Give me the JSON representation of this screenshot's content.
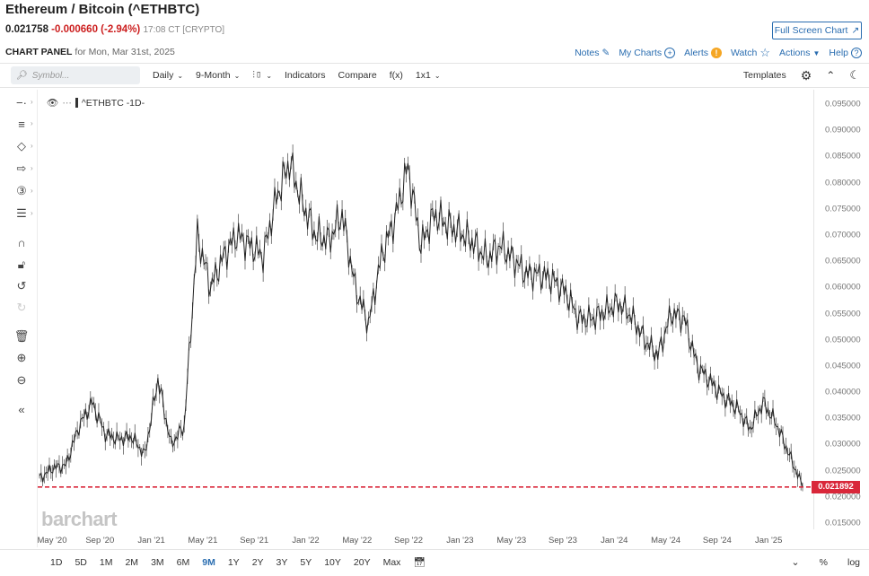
{
  "header": {
    "title": "Ethereum / Bitcoin (^ETHBTC)",
    "last_price": "0.021758",
    "change": "-0.000660 (-2.94%)",
    "time": "17:08 CT [CRYPTO]",
    "fullscreen_label": "Full Screen Chart"
  },
  "panel": {
    "label": "CHART PANEL",
    "date": "for Mon, Mar 31st, 2025"
  },
  "toplinks": {
    "notes": "Notes",
    "mycharts": "My Charts",
    "alerts": "Alerts",
    "alerts_badge": "!",
    "watch": "Watch",
    "actions": "Actions",
    "help": "Help"
  },
  "toolbar": {
    "search_placeholder": "Symbol...",
    "interval": "Daily",
    "period": "9-Month",
    "indicators": "Indicators",
    "compare": "Compare",
    "fx": "f(x)",
    "layout": "1x1",
    "templates": "Templates"
  },
  "legend": {
    "symbol": "^ETHBTC -1D-"
  },
  "current_price_label": "0.021892",
  "watermark": "barchart",
  "bottombar": {
    "ranges": [
      "1D",
      "5D",
      "1M",
      "2M",
      "3M",
      "6M",
      "9M",
      "1Y",
      "2Y",
      "3Y",
      "5Y",
      "10Y",
      "20Y",
      "Max"
    ],
    "active_range": "9M",
    "percent": "%",
    "log": "log"
  },
  "colors": {
    "accent": "#2a6db0",
    "down": "#cc1f1f",
    "price_line": "#d9273a"
  },
  "chart_data": {
    "type": "line",
    "title": "Ethereum / Bitcoin (^ETHBTC)",
    "xlabel": "",
    "ylabel": "",
    "ylim": [
      0.015,
      0.095
    ],
    "y_ticks": [
      "0.095000",
      "0.090000",
      "0.085000",
      "0.080000",
      "0.075000",
      "0.070000",
      "0.065000",
      "0.060000",
      "0.055000",
      "0.050000",
      "0.045000",
      "0.040000",
      "0.035000",
      "0.030000",
      "0.025000",
      "0.020000",
      "0.015000"
    ],
    "x_tick_labels": [
      "May '20",
      "Sep '20",
      "Jan '21",
      "May '21",
      "Sep '21",
      "Jan '22",
      "May '22",
      "Sep '22",
      "Jan '23",
      "May '23",
      "Sep '23",
      "Jan '24",
      "May '24",
      "Sep '24",
      "Jan '25"
    ],
    "x": [
      "2020-05",
      "2020-06",
      "2020-07",
      "2020-08",
      "2020-09",
      "2020-10",
      "2020-11",
      "2020-12",
      "2021-01",
      "2021-02",
      "2021-03",
      "2021-04",
      "2021-05",
      "2021-06",
      "2021-07",
      "2021-08",
      "2021-09",
      "2021-10",
      "2021-11",
      "2021-12",
      "2022-01",
      "2022-02",
      "2022-03",
      "2022-04",
      "2022-05",
      "2022-06",
      "2022-07",
      "2022-08",
      "2022-09",
      "2022-10",
      "2022-11",
      "2022-12",
      "2023-01",
      "2023-02",
      "2023-03",
      "2023-04",
      "2023-05",
      "2023-06",
      "2023-07",
      "2023-08",
      "2023-09",
      "2023-10",
      "2023-11",
      "2023-12",
      "2024-01",
      "2024-02",
      "2024-03",
      "2024-04",
      "2024-05",
      "2024-06",
      "2024-07",
      "2024-08",
      "2024-09",
      "2024-10",
      "2024-11",
      "2024-12",
      "2025-01",
      "2025-02",
      "2025-03"
    ],
    "series": [
      {
        "name": "^ETHBTC",
        "values": [
          0.0235,
          0.0255,
          0.026,
          0.0335,
          0.038,
          0.032,
          0.031,
          0.0315,
          0.028,
          0.0425,
          0.03,
          0.0335,
          0.07,
          0.06,
          0.066,
          0.07,
          0.068,
          0.066,
          0.077,
          0.084,
          0.076,
          0.07,
          0.069,
          0.074,
          0.06,
          0.053,
          0.066,
          0.073,
          0.083,
          0.068,
          0.074,
          0.072,
          0.0705,
          0.0685,
          0.0655,
          0.068,
          0.0655,
          0.0625,
          0.0625,
          0.0615,
          0.059,
          0.054,
          0.054,
          0.0555,
          0.057,
          0.0545,
          0.05,
          0.047,
          0.055,
          0.054,
          0.045,
          0.042,
          0.039,
          0.037,
          0.033,
          0.038,
          0.034,
          0.028,
          0.0219
        ]
      }
    ],
    "current_price": 0.021892,
    "grid": false
  }
}
